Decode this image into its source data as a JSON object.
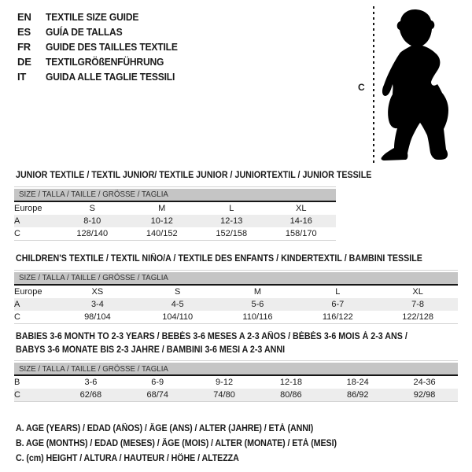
{
  "colors": {
    "background": "#ffffff",
    "header_bar": "#c5c5c5",
    "row_stripe": "#ededed",
    "text": "#1a1a1a",
    "silhouette": "#000000"
  },
  "languages": [
    {
      "code": "EN",
      "label": "TEXTILE SIZE GUIDE"
    },
    {
      "code": "ES",
      "label": "GUÍA DE TALLAS"
    },
    {
      "code": "FR",
      "label": "GUIDE DES TAILLES TEXTILE"
    },
    {
      "code": "DE",
      "label": "TEXTILGRÖßENFÜHRUNG"
    },
    {
      "code": "IT",
      "label": "GUIDA ALLE TAGLIE TESSILI"
    }
  ],
  "figure": {
    "height_label": "C",
    "description": "baby-silhouette"
  },
  "tables": [
    {
      "title_lines": [
        "JUNIOR TEXTILE / TEXTIL JUNIOR/ TEXTILE JUNIOR / JUNIORTEXTIL / JUNIOR TESSILE"
      ],
      "size_header": "SIZE / TALLA / TAILLE / GRÖSSE / TAGLIA",
      "columns": [
        "Europe",
        "S",
        "M",
        "L",
        "XL"
      ],
      "rows": [
        {
          "label": "A",
          "values": [
            "8-10",
            "10-12",
            "12-13",
            "14-16"
          ],
          "striped": true
        },
        {
          "label": "C",
          "values": [
            "128/140",
            "140/152",
            "152/158",
            "158/170"
          ],
          "striped": false
        }
      ]
    },
    {
      "title_lines": [
        "CHILDREN'S TEXTILE / TEXTIL NIÑO/A / TEXTILE DES ENFANTS / KINDERTEXTIL / BAMBINI TESSILE"
      ],
      "size_header": "SIZE / TALLA / TAILLE / GRÖSSE / TAGLIA",
      "columns": [
        "Europe",
        "XS",
        "S",
        "M",
        "L",
        "XL"
      ],
      "rows": [
        {
          "label": "A",
          "values": [
            "3-4",
            "4-5",
            "5-6",
            "6-7",
            "7-8"
          ],
          "striped": true
        },
        {
          "label": "C",
          "values": [
            "98/104",
            "104/110",
            "110/116",
            "116/122",
            "122/128"
          ],
          "striped": false
        }
      ]
    },
    {
      "title_lines": [
        "BABIES 3-6 MONTH TO 2-3 YEARS / BEBÉS 3-6 MESES A 2-3 AÑOS / BÉBÉS 3-6 MOIS À 2-3 ANS /",
        "BABYS 3-6 MONATE BIS 2-3 JAHRE / BAMBINI 3-6 MESI A 2-3 ANNI"
      ],
      "size_header": "SIZE / TALLA / TAILLE / GRÖSSE / TAGLIA",
      "columns": null,
      "rows": [
        {
          "label": "B",
          "values": [
            "3-6",
            "6-9",
            "9-12",
            "12-18",
            "18-24",
            "24-36"
          ],
          "striped": false
        },
        {
          "label": "C",
          "values": [
            "62/68",
            "68/74",
            "74/80",
            "80/86",
            "86/92",
            "92/98"
          ],
          "striped": true
        }
      ]
    }
  ],
  "legend": [
    "A. AGE (YEARS) / EDAD (AÑOS) / ÂGE (ANS) / ALTER (JAHRE) / ETÀ (ANNI)",
    "B. AGE (MONTHS) / EDAD (MESES) / ÂGE (MOIS) / ALTER (MONATE) / ETÀ (MESI)",
    "C. (cm) HEIGHT / ALTURA / HAUTEUR / HÖHE / ALTEZZA"
  ]
}
